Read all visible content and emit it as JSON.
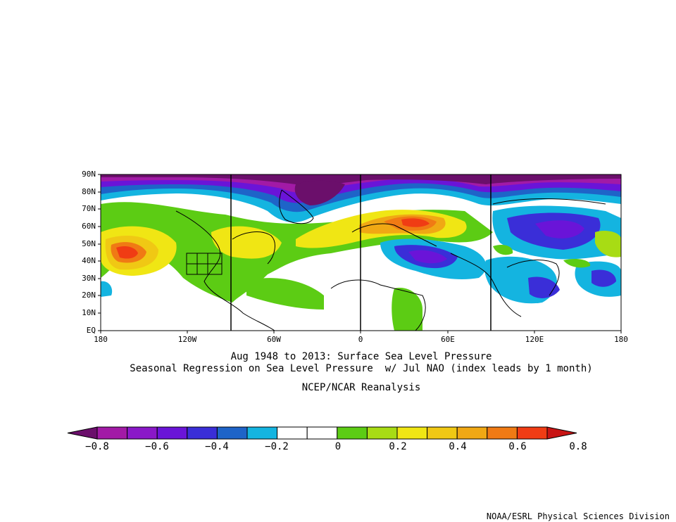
{
  "map": {
    "lat_labels": [
      "90N",
      "80N",
      "70N",
      "60N",
      "50N",
      "40N",
      "30N",
      "20N",
      "10N",
      "EQ"
    ],
    "lon_labels": [
      "180",
      "120W",
      "60W",
      "0",
      "60E",
      "120E",
      "180"
    ]
  },
  "titles": {
    "line1": "Aug 1948 to 2013: Surface Sea Level Pressure",
    "line2": "Seasonal Regression on Sea Level Pressure  w/ Jul NAO (index leads by 1 month)",
    "line3": "NCEP/NCAR Reanalysis"
  },
  "colorbar": {
    "colors": [
      "#6b0f6b",
      "#a21aa6",
      "#8a18c8",
      "#6a14d8",
      "#3a2ed8",
      "#1e64c8",
      "#14b4e0",
      "#ffffff",
      "#ffffff",
      "#5ccc14",
      "#a8dc14",
      "#f0e614",
      "#f0c814",
      "#f0a814",
      "#f07a14",
      "#f03c14",
      "#c81414"
    ],
    "labels": [
      "−0.8",
      "−0.6",
      "−0.4",
      "−0.2",
      "0",
      "0.2",
      "0.4",
      "0.6",
      "0.8"
    ]
  },
  "credit": "NOAA/ESRL Physical Sciences Division"
}
